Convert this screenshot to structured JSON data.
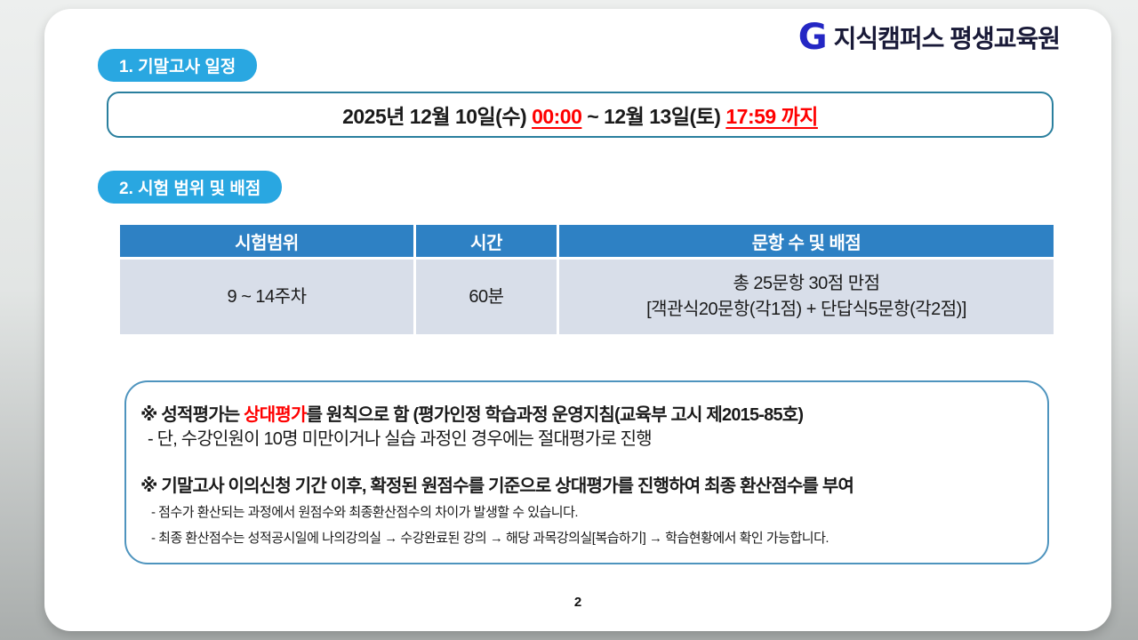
{
  "logo": {
    "mark": "G",
    "text": "지식캠퍼스 평생교육원"
  },
  "section1": {
    "badge": "1. 기말고사 일정",
    "schedule": {
      "part1": "2025년 12월 10일(수) ",
      "highlight1": "00:00",
      "part2": "  ~ 12월 13일(토) ",
      "highlight2": "17:59 까지"
    }
  },
  "section2": {
    "badge": "2. 시험 범위 및 배점",
    "table": {
      "headers": [
        "시험범위",
        "시간",
        "문항 수 및 배점"
      ],
      "row": {
        "range": "9 ~ 14주차",
        "time": "60분",
        "scoring_line1": "총 25문항 30점 만점",
        "scoring_line2": "[객관식20문항(각1점) + 단답식5문항(각2점)]"
      }
    }
  },
  "notes": {
    "note1": {
      "prefix": "※ 성적평가는 ",
      "highlight": "상대평가",
      "suffix": "를 원칙으로 함 (평가인정 학습과정 운영지침(교육부 고시 제2015-85호)",
      "sub": "- 단, 수강인원이 10명 미만이거나 실습 과정인 경우에는 절대평가로 진행"
    },
    "note2": {
      "text": "※ 기말고사 이의신청 기간 이후, 확정된 원점수를 기준으로 상대평가를 진행하여 최종 환산점수를 부여",
      "sub1": "- 점수가 환산되는 과정에서 원점수와 최종환산점수의 차이가 발생할 수 있습니다.",
      "sub2": "- 최종 환산점수는 성적공시일에 나의강의실 → 수강완료된 강의 → 해당 과목강의실[복습하기] → 학습현황에서 확인 가능합니다."
    }
  },
  "page_number": "2",
  "colors": {
    "badge_blue": "#29A7E1",
    "table_header_blue": "#2E81C4",
    "table_row_bg": "#D8DEE9",
    "schedule_border": "#2A7F9E",
    "notes_border": "#4E94BE",
    "highlight_red": "#FF0000",
    "logo_blue": "#2427C4",
    "logo_navy": "#191A38"
  }
}
